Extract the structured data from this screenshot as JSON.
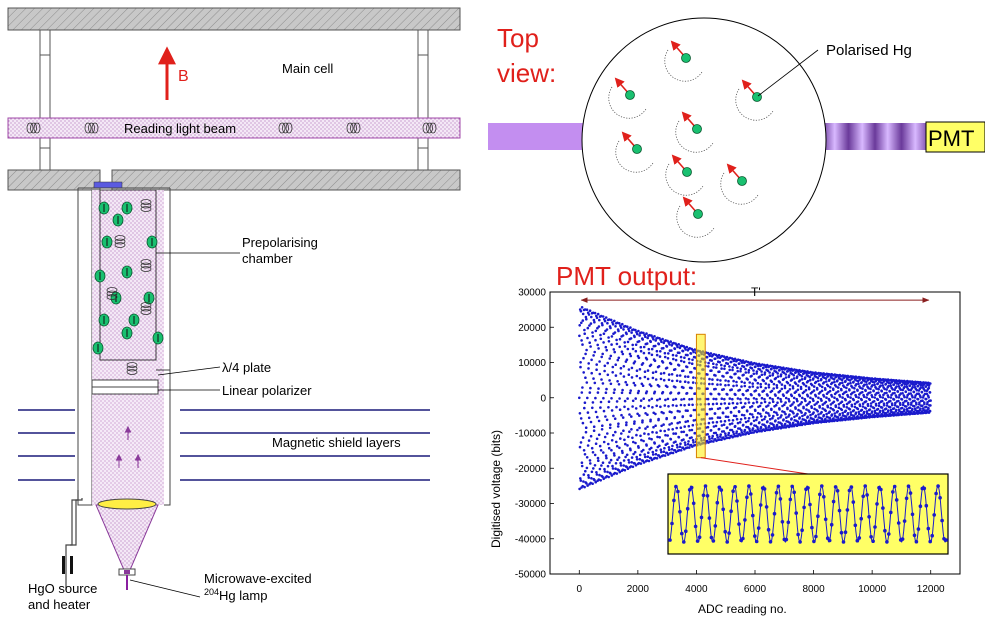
{
  "left_diagram": {
    "labels": {
      "b_field": "B",
      "main_cell": "Main cell",
      "reading_beam": "Reading light beam",
      "prepolarising_line1": "Prepolarising",
      "prepolarising_line2": "chamber",
      "quarter_wave_symbol": "λ",
      "quarter_wave_rest": "/4 plate",
      "linear_polarizer": "Linear polarizer",
      "magnetic_shield": "Magnetic shield layers",
      "hgo_line1": "HgO source",
      "hgo_line2": "and heater",
      "lamp_line1": "Microwave-excited",
      "lamp_superscript": "204",
      "lamp_line2": "Hg lamp"
    }
  },
  "top_view": {
    "title_line1": "Top",
    "title_line2": "view:",
    "polarised_label": "Polarised Hg",
    "pmt_label": "PMT"
  },
  "pmt_output": {
    "title": "PMT output:",
    "period_label": "T'",
    "ylabel": "Digitised voltage (bits)",
    "xlabel": "ADC reading no."
  },
  "colors": {
    "red": "#e0201b",
    "blue": "#1a1acc",
    "green": "#19c070",
    "violet": "#c792ea",
    "yellow": "#ffff66",
    "gray": "#c8c8c8",
    "orange": "#ffaa00",
    "purple_dark": "#7a1a8a"
  },
  "chart_data": {
    "type": "scatter",
    "xlim": [
      -1000,
      13000
    ],
    "ylim": [
      -50000,
      30000
    ],
    "xticks": [
      0,
      2000,
      4000,
      6000,
      8000,
      10000,
      12000
    ],
    "yticks": [
      -50000,
      -40000,
      -30000,
      -20000,
      -10000,
      0,
      10000,
      20000,
      30000
    ],
    "x_tick_labels": [
      "0",
      "2000",
      "4000",
      "6000",
      "8000",
      "10000",
      "12000"
    ],
    "y_tick_labels": [
      "-50000",
      "-40000",
      "-30000",
      "-20000",
      "-10000",
      "0",
      "10000",
      "20000",
      "30000"
    ],
    "series": [
      {
        "envelope_x": [
          0,
          2000,
          4000,
          6000,
          8000,
          10000,
          12000
        ],
        "envelope_amplitude": [
          26000,
          19000,
          13500,
          9800,
          7200,
          5500,
          4200
        ]
      }
    ],
    "highlight_window_x": [
      4000,
      4300
    ],
    "period_arrow_x": [
      0,
      12000
    ]
  }
}
